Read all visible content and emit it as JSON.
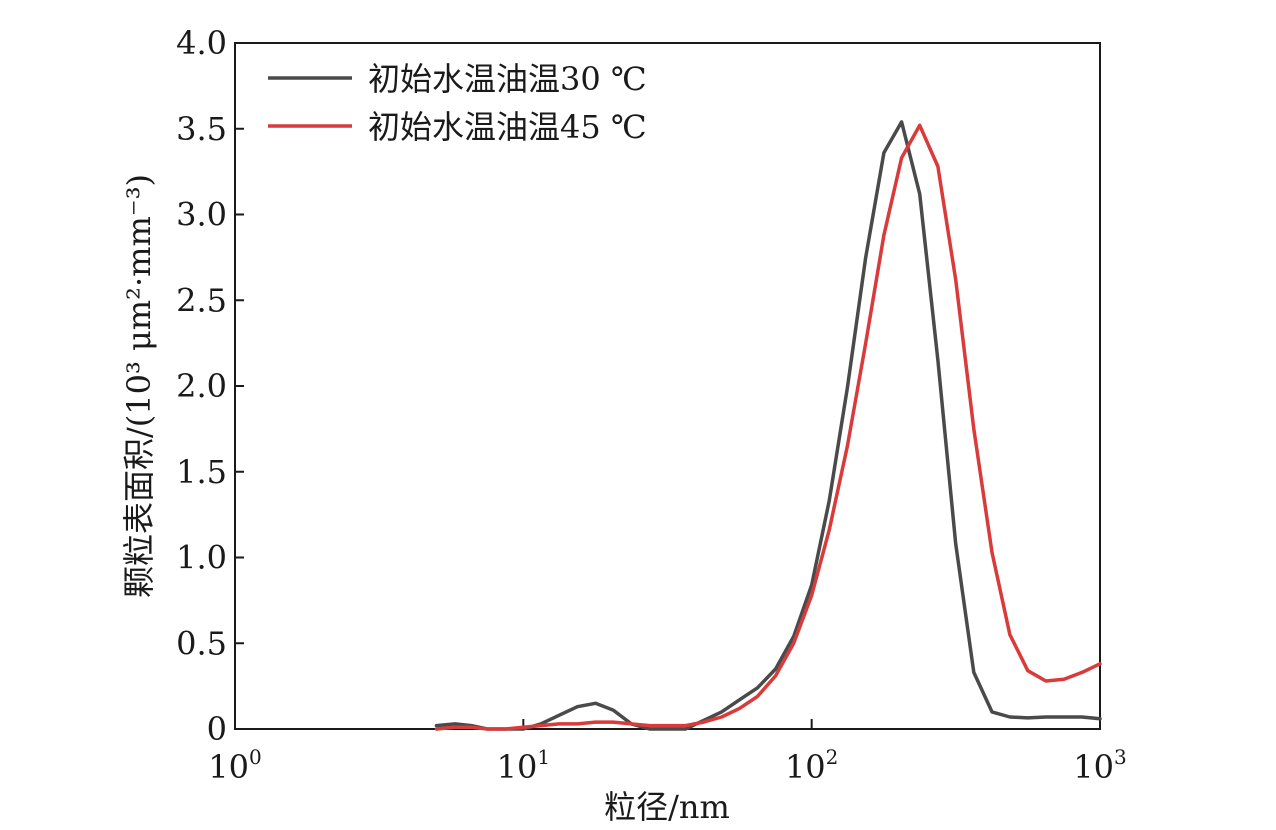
{
  "chart_data": {
    "type": "line",
    "title": "",
    "xlabel": "粒径/nm",
    "ylabel": "颗粒表面积/(10³ μm²·mm⁻³)",
    "x_scale": "log",
    "xlim": [
      1,
      1000
    ],
    "ylim": [
      0,
      4.0
    ],
    "x_ticks": [
      {
        "value": 1,
        "base": "10",
        "exp": "0"
      },
      {
        "value": 10,
        "base": "10",
        "exp": "1"
      },
      {
        "value": 100,
        "base": "10",
        "exp": "2"
      },
      {
        "value": 1000,
        "base": "10",
        "exp": "3"
      }
    ],
    "y_ticks": [
      {
        "value": 0,
        "label": "0"
      },
      {
        "value": 0.5,
        "label": "0.5"
      },
      {
        "value": 1.0,
        "label": "1.0"
      },
      {
        "value": 1.5,
        "label": "1.5"
      },
      {
        "value": 2.0,
        "label": "2.0"
      },
      {
        "value": 2.5,
        "label": "2.5"
      },
      {
        "value": 3.0,
        "label": "3.0"
      },
      {
        "value": 3.5,
        "label": "3.5"
      },
      {
        "value": 4.0,
        "label": "4.0"
      }
    ],
    "grid": false,
    "legend_position": "top-left",
    "series": [
      {
        "name": "初始水温油温30 ℃",
        "color": "#4a4a4a",
        "x": [
          5.0,
          5.8,
          6.6,
          7.5,
          8.7,
          10.0,
          11.5,
          13.3,
          15.4,
          17.8,
          20.5,
          23.7,
          27.4,
          31.6,
          36.5,
          42.2,
          48.7,
          56.2,
          64.9,
          75.0,
          86.6,
          100,
          115,
          133,
          154,
          178,
          205,
          237,
          274,
          316,
          365,
          422,
          487,
          562,
          649,
          750,
          866,
          1000
        ],
        "y": [
          0.02,
          0.03,
          0.02,
          0.0,
          0.0,
          0.0,
          0.03,
          0.08,
          0.13,
          0.15,
          0.11,
          0.03,
          0.0,
          0.0,
          0.0,
          0.05,
          0.1,
          0.17,
          0.24,
          0.35,
          0.54,
          0.84,
          1.33,
          1.99,
          2.75,
          3.36,
          3.54,
          3.12,
          2.15,
          1.08,
          0.33,
          0.1,
          0.07,
          0.065,
          0.07,
          0.07,
          0.07,
          0.06
        ]
      },
      {
        "name": "初始水温油温45 ℃",
        "color": "#d93a3a",
        "x": [
          5.0,
          5.8,
          6.6,
          7.5,
          8.7,
          10.0,
          11.5,
          13.3,
          15.4,
          17.8,
          20.5,
          23.7,
          27.4,
          31.6,
          36.5,
          42.2,
          48.7,
          56.2,
          64.9,
          75.0,
          86.6,
          100,
          115,
          133,
          154,
          178,
          205,
          237,
          274,
          316,
          365,
          422,
          487,
          562,
          649,
          750,
          866,
          1000
        ],
        "y": [
          0.0,
          0.01,
          0.01,
          0.0,
          0.0,
          0.01,
          0.02,
          0.03,
          0.03,
          0.04,
          0.04,
          0.03,
          0.02,
          0.02,
          0.02,
          0.04,
          0.07,
          0.12,
          0.19,
          0.31,
          0.5,
          0.78,
          1.16,
          1.65,
          2.25,
          2.88,
          3.33,
          3.52,
          3.28,
          2.62,
          1.75,
          1.03,
          0.55,
          0.34,
          0.28,
          0.29,
          0.33,
          0.38
        ]
      }
    ]
  }
}
